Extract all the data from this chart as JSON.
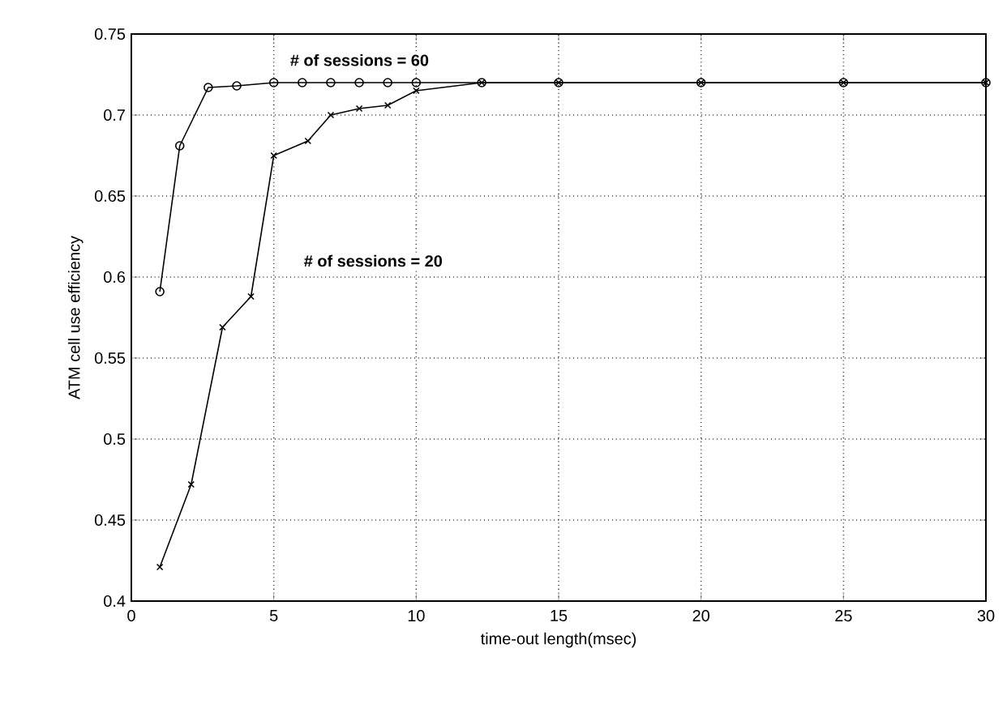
{
  "chart_data": {
    "type": "line",
    "xlabel": "time-out length(msec)",
    "ylabel": "ATM cell use efficiency",
    "xlim": [
      0,
      30
    ],
    "ylim": [
      0.4,
      0.75
    ],
    "xticks": [
      0,
      5,
      10,
      15,
      20,
      25,
      30
    ],
    "yticks": [
      0.4,
      0.45,
      0.5,
      0.55,
      0.6,
      0.65,
      0.7,
      0.75
    ],
    "grid": true,
    "series": [
      {
        "color": "#000000",
        "marker": "circle",
        "x": [
          1,
          1.7,
          2.7,
          3.7,
          5,
          6,
          7,
          8,
          9,
          10,
          12.3,
          15,
          20,
          25,
          30
        ],
        "values": [
          0.591,
          0.681,
          0.717,
          0.718,
          0.72,
          0.72,
          0.72,
          0.72,
          0.72,
          0.72,
          0.72,
          0.72,
          0.72,
          0.72,
          0.72
        ]
      },
      {
        "color": "#000000",
        "marker": "cross",
        "x": [
          1,
          2.1,
          3.2,
          4.2,
          5,
          6.2,
          7,
          8,
          9,
          10,
          12.3,
          15,
          20,
          25,
          30
        ],
        "values": [
          0.421,
          0.472,
          0.569,
          0.588,
          0.675,
          0.684,
          0.7,
          0.704,
          0.706,
          0.715,
          0.72,
          0.72,
          0.72,
          0.72,
          0.72
        ]
      }
    ],
    "annotations": [
      "# of sessions = 60",
      "# of sessions = 20"
    ]
  }
}
